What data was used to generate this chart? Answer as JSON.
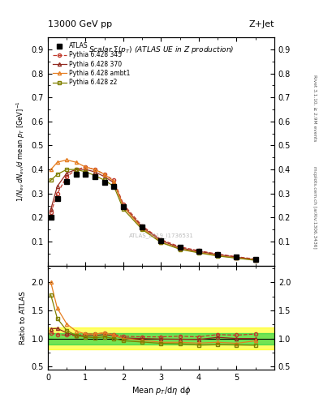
{
  "title_top": "13000 GeV pp",
  "title_right": "Z+Jet",
  "plot_title": "Scalar Σ(p_T) (ATLAS UE in Z production)",
  "ylabel_main": "1/N_{ev} dN_{ev}/d mean p_T [GeV]^{-1}",
  "ylabel_ratio": "Ratio to ATLAS",
  "xlabel": "Mean p_T/dη dφ",
  "watermark": "ATLAS_2019_I1736531",
  "rivet_text": "Rivet 3.1.10, ≥ 2.9M events",
  "inspire_text": "mcplots.cern.ch [arXiv:1306.3436]",
  "atlas_x": [
    0.08,
    0.25,
    0.5,
    0.75,
    1.0,
    1.25,
    1.5,
    1.75,
    2.0,
    2.5,
    3.0,
    3.5,
    4.0,
    4.5,
    5.0,
    5.5
  ],
  "atlas_y": [
    0.2,
    0.28,
    0.35,
    0.38,
    0.38,
    0.37,
    0.345,
    0.33,
    0.245,
    0.16,
    0.105,
    0.075,
    0.06,
    0.045,
    0.035,
    0.025
  ],
  "p345_x": [
    0.08,
    0.25,
    0.5,
    0.75,
    1.0,
    1.25,
    1.5,
    1.75,
    2.0,
    2.5,
    3.0,
    3.5,
    4.0,
    4.5,
    5.0,
    5.5
  ],
  "p345_y": [
    0.22,
    0.3,
    0.37,
    0.4,
    0.41,
    0.4,
    0.38,
    0.355,
    0.255,
    0.165,
    0.108,
    0.078,
    0.062,
    0.048,
    0.037,
    0.027
  ],
  "p370_x": [
    0.08,
    0.25,
    0.5,
    0.75,
    1.0,
    1.25,
    1.5,
    1.75,
    2.0,
    2.5,
    3.0,
    3.5,
    4.0,
    4.5,
    5.0,
    5.5
  ],
  "p370_y": [
    0.235,
    0.33,
    0.385,
    0.4,
    0.4,
    0.39,
    0.37,
    0.345,
    0.248,
    0.16,
    0.104,
    0.074,
    0.059,
    0.046,
    0.035,
    0.025
  ],
  "pambt1_x": [
    0.08,
    0.25,
    0.5,
    0.75,
    1.0,
    1.25,
    1.5,
    1.75,
    2.0,
    2.5,
    3.0,
    3.5,
    4.0,
    4.5,
    5.0,
    5.5
  ],
  "pambt1_y": [
    0.4,
    0.43,
    0.44,
    0.43,
    0.41,
    0.4,
    0.38,
    0.35,
    0.245,
    0.155,
    0.098,
    0.07,
    0.055,
    0.042,
    0.032,
    0.024
  ],
  "pz2_x": [
    0.08,
    0.25,
    0.5,
    0.75,
    1.0,
    1.25,
    1.5,
    1.75,
    2.0,
    2.5,
    3.0,
    3.5,
    4.0,
    4.5,
    5.0,
    5.5
  ],
  "pz2_y": [
    0.355,
    0.38,
    0.4,
    0.4,
    0.39,
    0.375,
    0.355,
    0.33,
    0.235,
    0.15,
    0.096,
    0.068,
    0.053,
    0.04,
    0.031,
    0.022
  ],
  "ratio_345_y": [
    1.1,
    1.07,
    1.06,
    1.05,
    1.08,
    1.08,
    1.1,
    1.07,
    1.04,
    1.03,
    1.03,
    1.04,
    1.03,
    1.07,
    1.06,
    1.08
  ],
  "ratio_370_y": [
    1.175,
    1.18,
    1.1,
    1.05,
    1.05,
    1.05,
    1.07,
    1.045,
    1.01,
    1.0,
    0.99,
    0.987,
    0.983,
    1.02,
    1.0,
    1.0
  ],
  "ratio_ambt1_y": [
    2.0,
    1.54,
    1.26,
    1.13,
    1.08,
    1.08,
    1.1,
    1.06,
    1.0,
    0.969,
    0.933,
    0.933,
    0.917,
    0.933,
    0.914,
    0.96
  ],
  "ratio_z2_y": [
    1.775,
    1.357,
    1.143,
    1.053,
    1.026,
    1.013,
    1.029,
    1.0,
    0.959,
    0.938,
    0.914,
    0.907,
    0.883,
    0.889,
    0.886,
    0.88
  ],
  "color_345": "#c0392b",
  "color_370": "#922b21",
  "color_ambt1": "#e67e22",
  "color_z2": "#808000",
  "ylim_main": [
    0.0,
    0.95
  ],
  "ylim_ratio": [
    0.45,
    2.3
  ],
  "xlim": [
    0.0,
    6.0
  ],
  "yticks_main": [
    0.1,
    0.2,
    0.3,
    0.4,
    0.5,
    0.6,
    0.7,
    0.8,
    0.9
  ],
  "yticks_ratio": [
    0.5,
    1.0,
    1.5,
    2.0
  ],
  "xticks": [
    0,
    1,
    2,
    3,
    4,
    5
  ]
}
